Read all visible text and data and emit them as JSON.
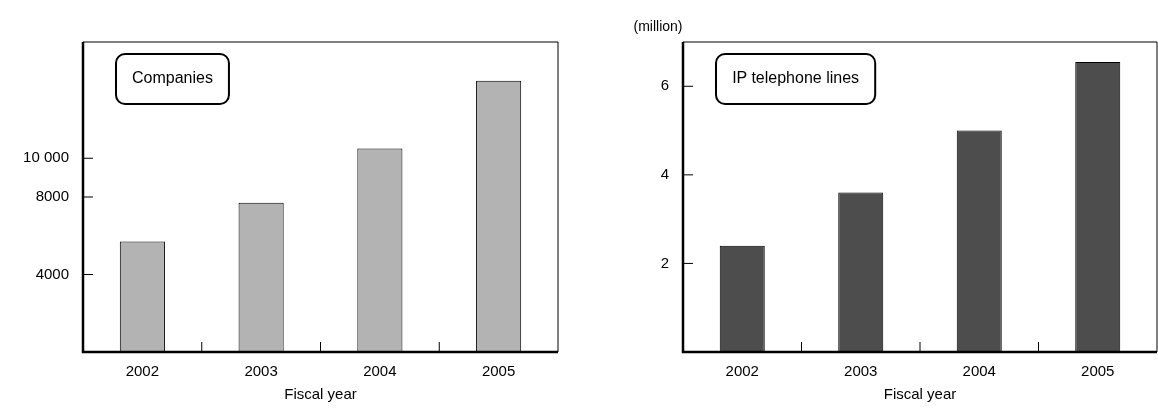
{
  "chart_data": [
    {
      "type": "bar",
      "title": "Companies",
      "xlabel": "Fiscal year",
      "categories": [
        "2002",
        "2003",
        "2004",
        "2005"
      ],
      "values": [
        5700,
        7700,
        10500,
        14000
      ],
      "color": "#b3b3b3",
      "ylim": [
        0,
        16000
      ],
      "yticks": [
        4000,
        8000,
        {
          "value": 10000,
          "label": "10 000"
        }
      ],
      "legend": false
    },
    {
      "type": "bar",
      "title": "IP telephone lines",
      "xlabel": "Fiscal year",
      "ylabel": "(million)",
      "categories": [
        "2002",
        "2003",
        "2004",
        "2005"
      ],
      "values": [
        2.4,
        3.6,
        5.0,
        6.55
      ],
      "color": "#4d4d4d",
      "ylim": [
        0,
        7
      ],
      "yticks": [
        2,
        4,
        6
      ],
      "legend": false
    }
  ]
}
